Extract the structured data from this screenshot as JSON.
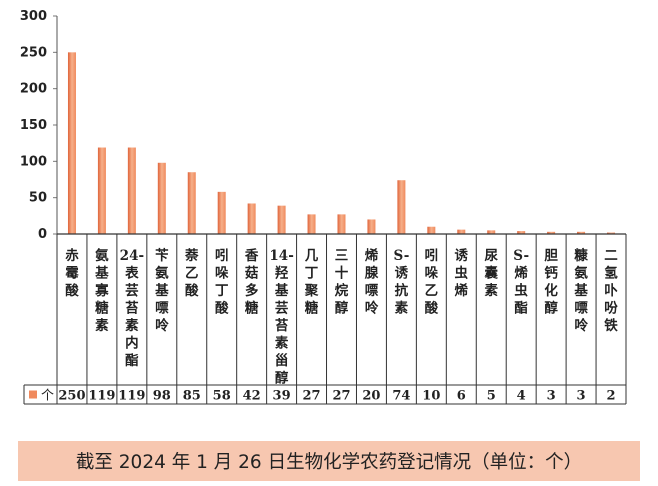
{
  "chart_data": {
    "type": "bar",
    "categories": [
      "赤霉酸",
      "氨基寡糖素",
      "24-表芸苔素内酯",
      "苄氨基嘌呤",
      "萘乙酸",
      "吲哚丁酸",
      "香菇多糖",
      "14-羟基芸苔素甾醇",
      "几丁聚糖",
      "三十烷醇",
      "烯腺嘌呤",
      "S-诱抗素",
      "吲哚乙酸",
      "诱虫烯",
      "尿囊素",
      "S-烯虫酯",
      "胆钙化醇",
      "糠氨基嘌呤",
      "二氢卟吩铁"
    ],
    "series": [
      {
        "name": "个",
        "values": [
          250,
          119,
          119,
          98,
          85,
          58,
          42,
          39,
          27,
          27,
          20,
          74,
          10,
          6,
          5,
          4,
          3,
          3,
          2
        ]
      }
    ],
    "y_ticks": [
      "0",
      "50",
      "100",
      "150",
      "200",
      "250",
      "300"
    ],
    "ylim": [
      0,
      300
    ],
    "legend": "data-table",
    "bar_color": "#f08a5d",
    "bar_color_light": "#f6b08a",
    "bar_color_dark": "#e0643a"
  },
  "caption": "截至 2024 年 1 月 26 日生物化学农药登记情况（单位：个）",
  "caption_bg": "#f7c7b0"
}
